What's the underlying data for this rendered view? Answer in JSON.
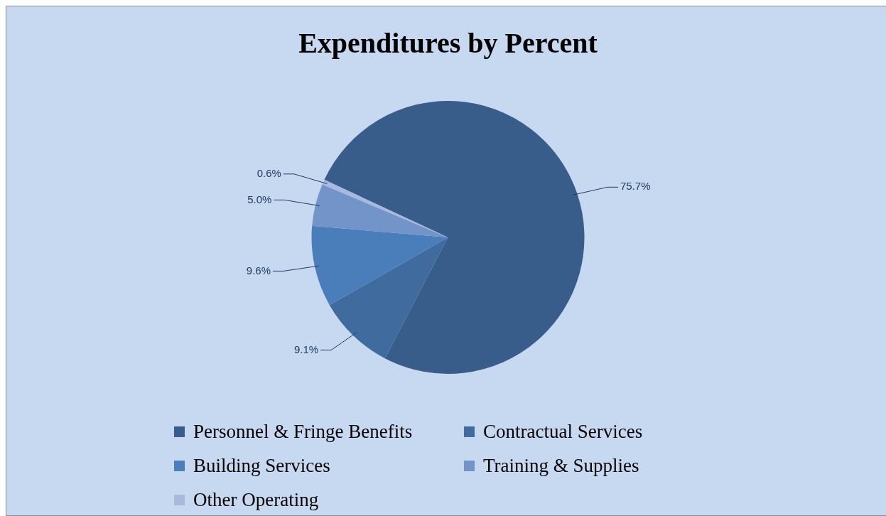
{
  "chart_data": {
    "type": "pie",
    "title": "Expenditures by Percent",
    "categories": [
      "Personnel & Fringe Benefits",
      "Contractual Services",
      "Building  Services",
      "Training & Supplies",
      "Other Operating"
    ],
    "values": [
      75.7,
      9.1,
      9.6,
      5.0,
      0.6
    ],
    "colors": [
      "#385d8a",
      "#3f6b9f",
      "#4a7ebb",
      "#7294c8",
      "#a7b9dc"
    ],
    "value_labels": [
      "75.7%",
      "9.1%",
      "9.6%",
      "5.0%",
      "0.6%"
    ],
    "legend": "bottom"
  }
}
